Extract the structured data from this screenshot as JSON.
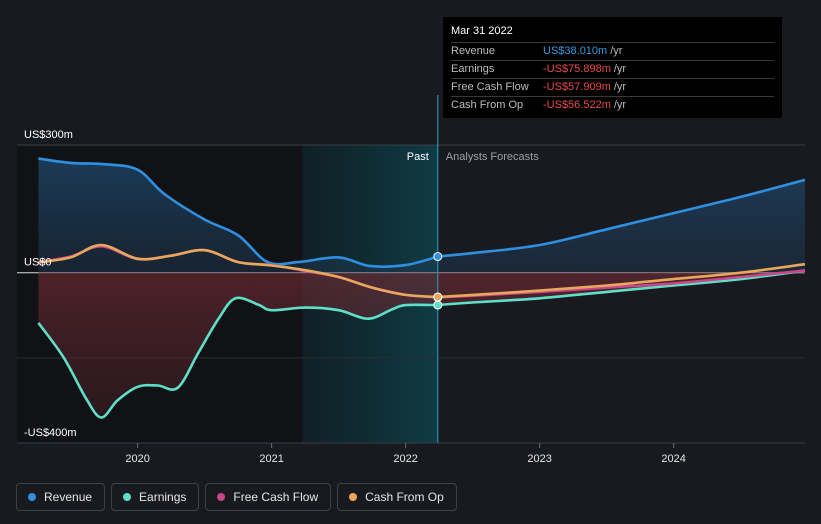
{
  "tooltip": {
    "date": "Mar 31 2022",
    "rows": [
      {
        "name": "Revenue",
        "value": "US$38.010m",
        "unit": "/yr",
        "color": "#3b9ae1"
      },
      {
        "name": "Earnings",
        "value": "-US$75.898m",
        "unit": "/yr",
        "color": "#e84a4a"
      },
      {
        "name": "Free Cash Flow",
        "value": "-US$57.909m",
        "unit": "/yr",
        "color": "#e84a4a"
      },
      {
        "name": "Cash From Op",
        "value": "-US$56.522m",
        "unit": "/yr",
        "color": "#e84a4a"
      }
    ]
  },
  "zones": {
    "past": "Past",
    "forecast": "Analysts Forecasts"
  },
  "legend": [
    {
      "label": "Revenue",
      "color": "#2f8fe0",
      "icon": "revenue-dot"
    },
    {
      "label": "Earnings",
      "color": "#5ee0c8",
      "icon": "earnings-dot"
    },
    {
      "label": "Free Cash Flow",
      "color": "#c8468a",
      "icon": "free-cash-flow-dot"
    },
    {
      "label": "Cash From Op",
      "color": "#e8a85c",
      "icon": "cash-from-op-dot"
    }
  ],
  "chart_data": {
    "type": "line",
    "y_ticks": [
      {
        "value": 300,
        "label": "US$300m"
      },
      {
        "value": 0,
        "label": "US$0"
      },
      {
        "value": -400,
        "label": "-US$400m"
      }
    ],
    "x_ticks": [
      "2020",
      "2021",
      "2022",
      "2023",
      "2024"
    ],
    "ylim": [
      -400,
      300
    ],
    "xlim": [
      2019.1,
      2024.98
    ],
    "highlight_date": 2022.24,
    "series": [
      {
        "name": "Revenue",
        "color": "#2f8fe0",
        "past": [
          [
            2019.26,
            268
          ],
          [
            2019.5,
            258
          ],
          [
            2019.75,
            255
          ],
          [
            2020.0,
            242
          ],
          [
            2020.2,
            185
          ],
          [
            2020.5,
            125
          ],
          [
            2020.75,
            88
          ],
          [
            2020.97,
            25
          ],
          [
            2021.2,
            25
          ],
          [
            2021.5,
            36
          ],
          [
            2021.73,
            16
          ],
          [
            2022.0,
            18
          ],
          [
            2022.24,
            38
          ]
        ],
        "forecast": [
          [
            2022.24,
            38
          ],
          [
            2022.5,
            46
          ],
          [
            2023.0,
            65
          ],
          [
            2023.5,
            102
          ],
          [
            2024.0,
            140
          ],
          [
            2024.5,
            178
          ],
          [
            2024.98,
            218
          ]
        ]
      },
      {
        "name": "Earnings",
        "color": "#5ee0c8",
        "past": [
          [
            2019.26,
            -118
          ],
          [
            2019.45,
            -200
          ],
          [
            2019.62,
            -298
          ],
          [
            2019.73,
            -340
          ],
          [
            2019.85,
            -300
          ],
          [
            2020.0,
            -268
          ],
          [
            2020.15,
            -265
          ],
          [
            2020.3,
            -270
          ],
          [
            2020.45,
            -190
          ],
          [
            2020.6,
            -110
          ],
          [
            2020.73,
            -60
          ],
          [
            2020.9,
            -75
          ],
          [
            2021.0,
            -88
          ],
          [
            2021.25,
            -82
          ],
          [
            2021.5,
            -88
          ],
          [
            2021.72,
            -108
          ],
          [
            2021.9,
            -86
          ],
          [
            2022.0,
            -76
          ],
          [
            2022.24,
            -76
          ]
        ],
        "forecast": [
          [
            2022.24,
            -76
          ],
          [
            2022.5,
            -70
          ],
          [
            2023.0,
            -60
          ],
          [
            2023.5,
            -45
          ],
          [
            2024.0,
            -30
          ],
          [
            2024.5,
            -15
          ],
          [
            2024.98,
            5
          ]
        ]
      },
      {
        "name": "Free Cash Flow",
        "color": "#c8468a",
        "past": [
          [
            2019.26,
            25
          ],
          [
            2019.5,
            38
          ],
          [
            2019.73,
            62
          ],
          [
            2020.0,
            32
          ],
          [
            2020.25,
            40
          ],
          [
            2020.5,
            53
          ],
          [
            2020.75,
            25
          ],
          [
            2021.0,
            18
          ],
          [
            2021.25,
            4
          ],
          [
            2021.5,
            -10
          ],
          [
            2021.75,
            -35
          ],
          [
            2022.0,
            -52
          ],
          [
            2022.24,
            -58
          ]
        ],
        "forecast": [
          [
            2022.24,
            -58
          ],
          [
            2022.5,
            -54
          ],
          [
            2023.0,
            -45
          ],
          [
            2023.5,
            -35
          ],
          [
            2024.0,
            -25
          ],
          [
            2024.5,
            -10
          ],
          [
            2024.98,
            5
          ]
        ]
      },
      {
        "name": "Cash From Op",
        "color": "#e8a85c",
        "past": [
          [
            2019.26,
            24
          ],
          [
            2019.5,
            36
          ],
          [
            2019.73,
            65
          ],
          [
            2020.0,
            33
          ],
          [
            2020.25,
            40
          ],
          [
            2020.5,
            53
          ],
          [
            2020.75,
            25
          ],
          [
            2021.0,
            17
          ],
          [
            2021.25,
            6
          ],
          [
            2021.5,
            -10
          ],
          [
            2021.75,
            -35
          ],
          [
            2022.0,
            -52
          ],
          [
            2022.24,
            -57
          ]
        ],
        "forecast": [
          [
            2022.24,
            -57
          ],
          [
            2022.5,
            -52
          ],
          [
            2023.0,
            -42
          ],
          [
            2023.5,
            -30
          ],
          [
            2024.0,
            -15
          ],
          [
            2024.5,
            0
          ],
          [
            2024.98,
            20
          ]
        ]
      }
    ]
  }
}
